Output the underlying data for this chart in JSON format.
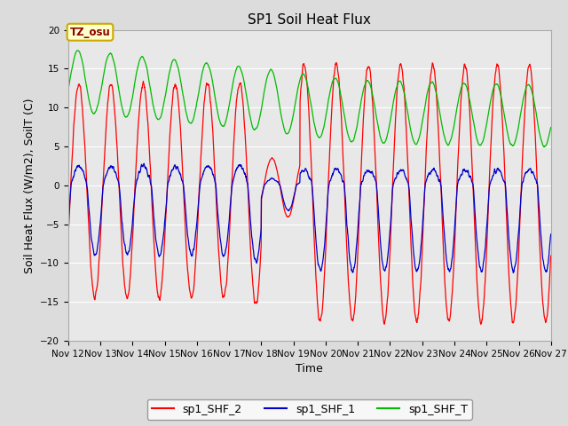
{
  "title": "SP1 Soil Heat Flux",
  "xlabel": "Time",
  "ylabel": "Soil Heat Flux (W/m2), SoilT (C)",
  "ylim": [
    -20,
    20
  ],
  "yticks": [
    -20,
    -15,
    -10,
    -5,
    0,
    5,
    10,
    15,
    20
  ],
  "x_start_day": 12,
  "x_end_day": 27,
  "xtick_days": [
    12,
    13,
    14,
    15,
    16,
    17,
    18,
    19,
    20,
    21,
    22,
    23,
    24,
    25,
    26,
    27
  ],
  "background_color": "#dcdcdc",
  "plot_bg_color": "#e8e8e8",
  "color_shf2": "#ff0000",
  "color_shf1": "#0000cc",
  "color_shft": "#00bb00",
  "legend_label_shf2": "sp1_SHF_2",
  "legend_label_shf1": "sp1_SHF_1",
  "legend_label_shft": "sp1_SHF_T",
  "tz_label": "TZ_osu",
  "title_fontsize": 11,
  "axis_label_fontsize": 9,
  "tick_fontsize": 7.5,
  "legend_fontsize": 9
}
